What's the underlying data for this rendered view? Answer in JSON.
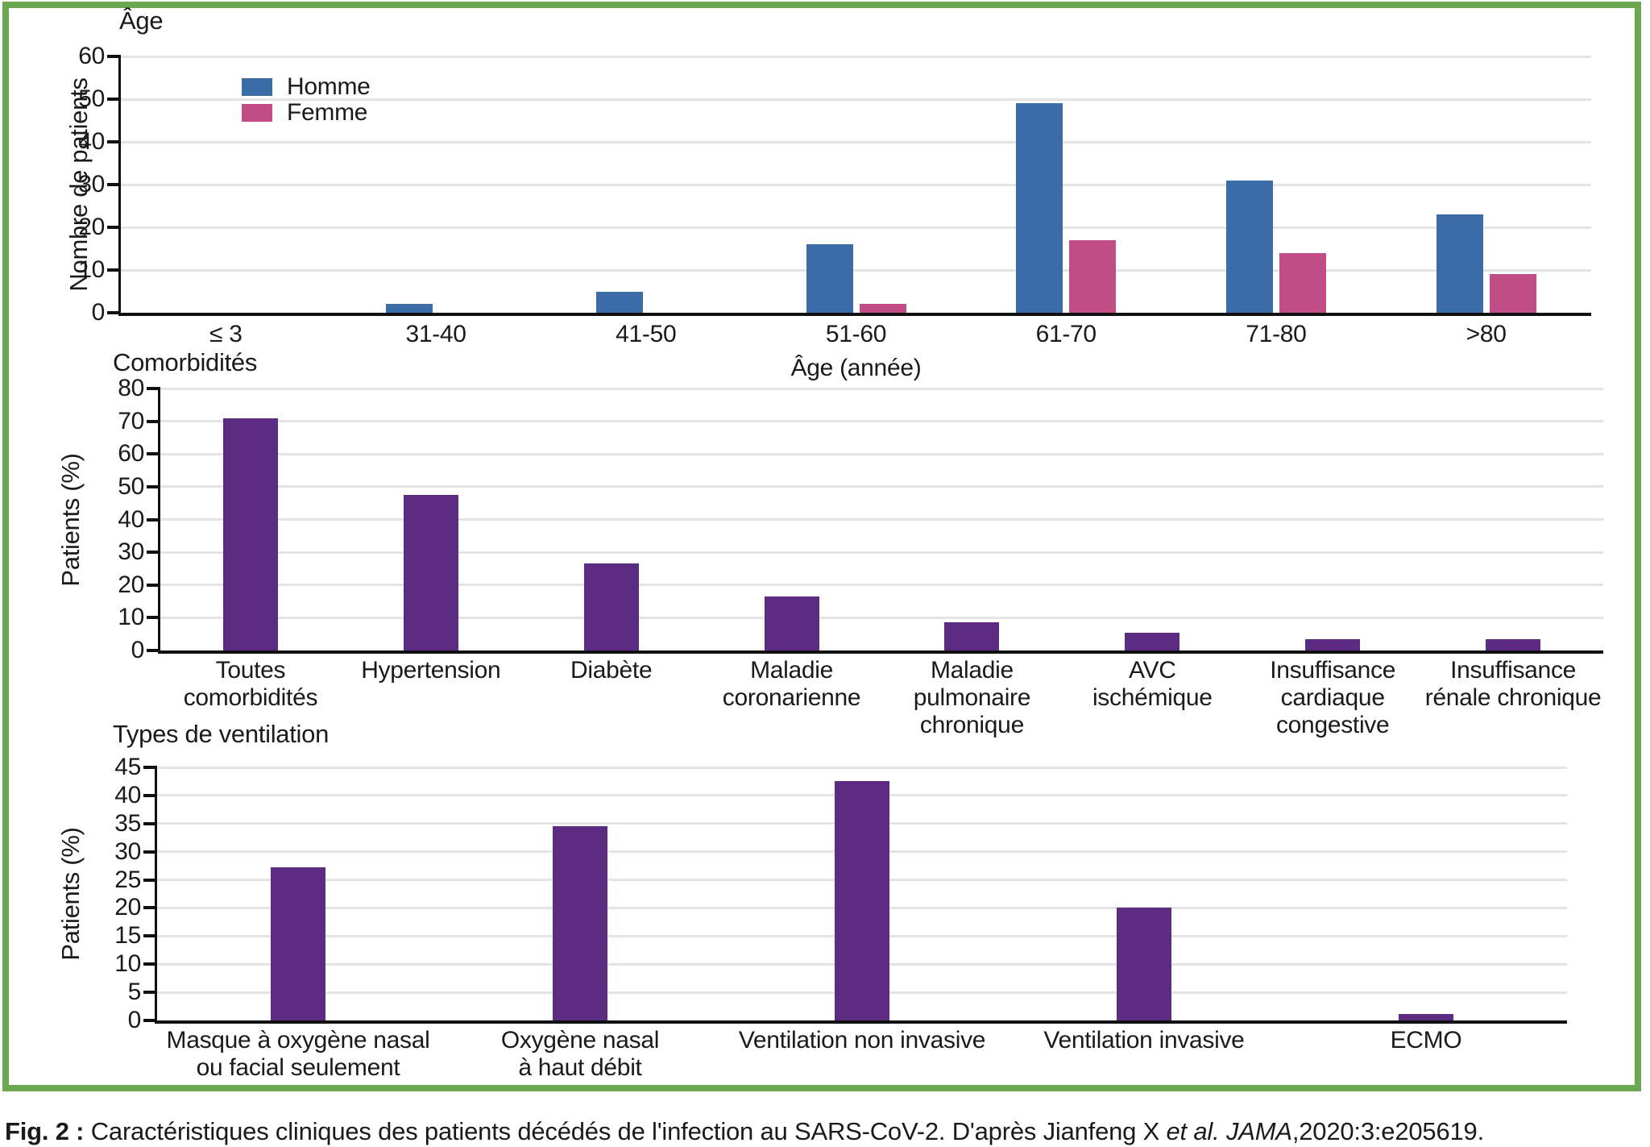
{
  "colors": {
    "homme_blue": "#3C6CA8",
    "femme_pink": "#C04D86",
    "purple": "#5C2B82",
    "border_green": "#69A750",
    "gridline": "#E4E4E4",
    "axis": "#111111"
  },
  "legend": {
    "items": [
      {
        "label": "Homme",
        "color": "#3C6CA8"
      },
      {
        "label": "Femme",
        "color": "#C04D86"
      }
    ]
  },
  "chart_data": [
    {
      "type": "bar",
      "title": "Âge",
      "ylabel": "Nombre de patients",
      "xlabel": "Âge (année)",
      "ylim": [
        0,
        60
      ],
      "ystep": 10,
      "yticks": [
        0,
        10,
        20,
        30,
        40,
        50,
        60
      ],
      "grid": true,
      "legend_position": "upper-left-inside",
      "categories": [
        "≤ 3",
        "31-40",
        "41-50",
        "51-60",
        "61-70",
        "71-80",
        ">80"
      ],
      "series": [
        {
          "name": "Homme",
          "color": "#3C6CA8",
          "values": [
            0,
            2,
            5,
            16,
            49,
            31,
            23
          ]
        },
        {
          "name": "Femme",
          "color": "#C04D86",
          "values": [
            0,
            0,
            0,
            2,
            17,
            14,
            9
          ]
        }
      ]
    },
    {
      "type": "bar",
      "title": "Comorbidités",
      "ylabel": "Patients (%)",
      "xlabel": "",
      "ylim": [
        0,
        80
      ],
      "ystep": 10,
      "yticks": [
        0,
        10,
        20,
        30,
        40,
        50,
        60,
        70,
        80
      ],
      "grid": true,
      "categories": [
        "Toutes\ncomorbidités",
        "Hypertension",
        "Diabète",
        "Maladie\ncoronarienne",
        "Maladie\npulmonaire\nchronique",
        "AVC\nischémique",
        "Insuffisance\ncardiaque\ncongestive",
        "Insuffisance\nrénale chronique"
      ],
      "series": [
        {
          "name": "Patients (%)",
          "color": "#5C2B82",
          "values": [
            71,
            47.5,
            26.5,
            16.5,
            8.7,
            5.5,
            3.5,
            3.5
          ]
        }
      ]
    },
    {
      "type": "bar",
      "title": "Types de ventilation",
      "ylabel": "Patients (%)",
      "xlabel": "",
      "ylim": [
        0,
        45
      ],
      "ystep": 5,
      "yticks": [
        0,
        5,
        10,
        15,
        20,
        25,
        30,
        35,
        40,
        45
      ],
      "grid": true,
      "categories": [
        "Masque à oxygène nasal\nou facial seulement",
        "Oxygène nasal\nà haut débit",
        "Ventilation non invasive",
        "Ventilation invasive",
        "ECMO"
      ],
      "series": [
        {
          "name": "Patients (%)",
          "color": "#5C2B82",
          "values": [
            27.3,
            34.5,
            42.5,
            20,
            1.2
          ]
        }
      ]
    }
  ],
  "caption": {
    "parts": [
      {
        "text": "Fig. 2 :",
        "style": "bold"
      },
      {
        "text": " Caractéristiques cliniques des patients décédés de l'infection au SARS-CoV-2. D'après Jianfeng X ",
        "style": "normal"
      },
      {
        "text": "et al.",
        "style": "italic"
      },
      {
        "text": " ",
        "style": "normal"
      },
      {
        "text": "JAMA",
        "style": "italic"
      },
      {
        "text": ",2020:3:e205619.",
        "style": "normal"
      }
    ]
  }
}
